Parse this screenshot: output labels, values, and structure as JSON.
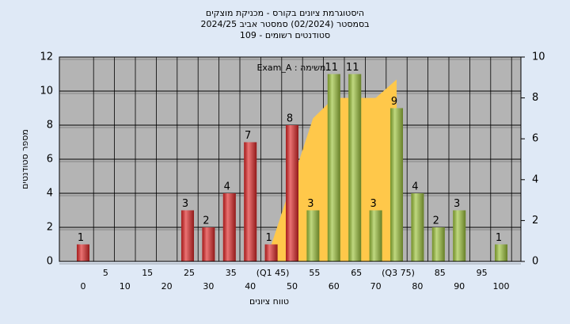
{
  "chart_data": {
    "type": "bar",
    "title": [
      "היסטוגרמת ציונים בקורס - מכניקת מוצקים",
      "בסמסטר  (02/2024)  סמסטר אביב 2024/25",
      "סטודנטים רשומים - 109"
    ],
    "annotation": "משימה : Exam_A",
    "x_label": "טווח ציונים",
    "y_label": "מספר סטודנטים",
    "categories": [
      "0",
      "5",
      "10",
      "15",
      "20",
      "25",
      "30",
      "35",
      "40",
      "(Q1 45)",
      "50",
      "55",
      "60",
      "65",
      "70",
      "(Q3 75)",
      "80",
      "85",
      "90",
      "95",
      "100"
    ],
    "values": [
      1,
      0,
      0,
      0,
      0,
      3,
      2,
      4,
      7,
      1,
      8,
      3,
      11,
      11,
      3,
      9,
      4,
      2,
      3,
      0,
      1
    ],
    "colors": [
      "#e02828",
      "#e02828",
      "#e02828",
      "#e02828",
      "#e02828",
      "#e02828",
      "#e02828",
      "#e02828",
      "#e02828",
      "#e02828",
      "#e02828",
      "#9ec43c",
      "#9ec43c",
      "#9ec43c",
      "#9ec43c",
      "#9ec43c",
      "#9ec43c",
      "#9ec43c",
      "#9ec43c",
      "#9ec43c",
      "#9ec43c"
    ],
    "area": {
      "color": "#ffc84a",
      "axis": "y2",
      "values": [
        null,
        null,
        null,
        null,
        null,
        null,
        null,
        null,
        null,
        0.8,
        3.9,
        7,
        8,
        8,
        8,
        8.9,
        null,
        null,
        null,
        null,
        null
      ]
    },
    "ylim": [
      0,
      12
    ],
    "yticks": [
      0,
      2,
      4,
      6,
      8,
      10,
      12
    ],
    "y2lim": [
      0,
      10
    ],
    "y2ticks": [
      0,
      2,
      4,
      6,
      8,
      10
    ],
    "grid": true
  }
}
